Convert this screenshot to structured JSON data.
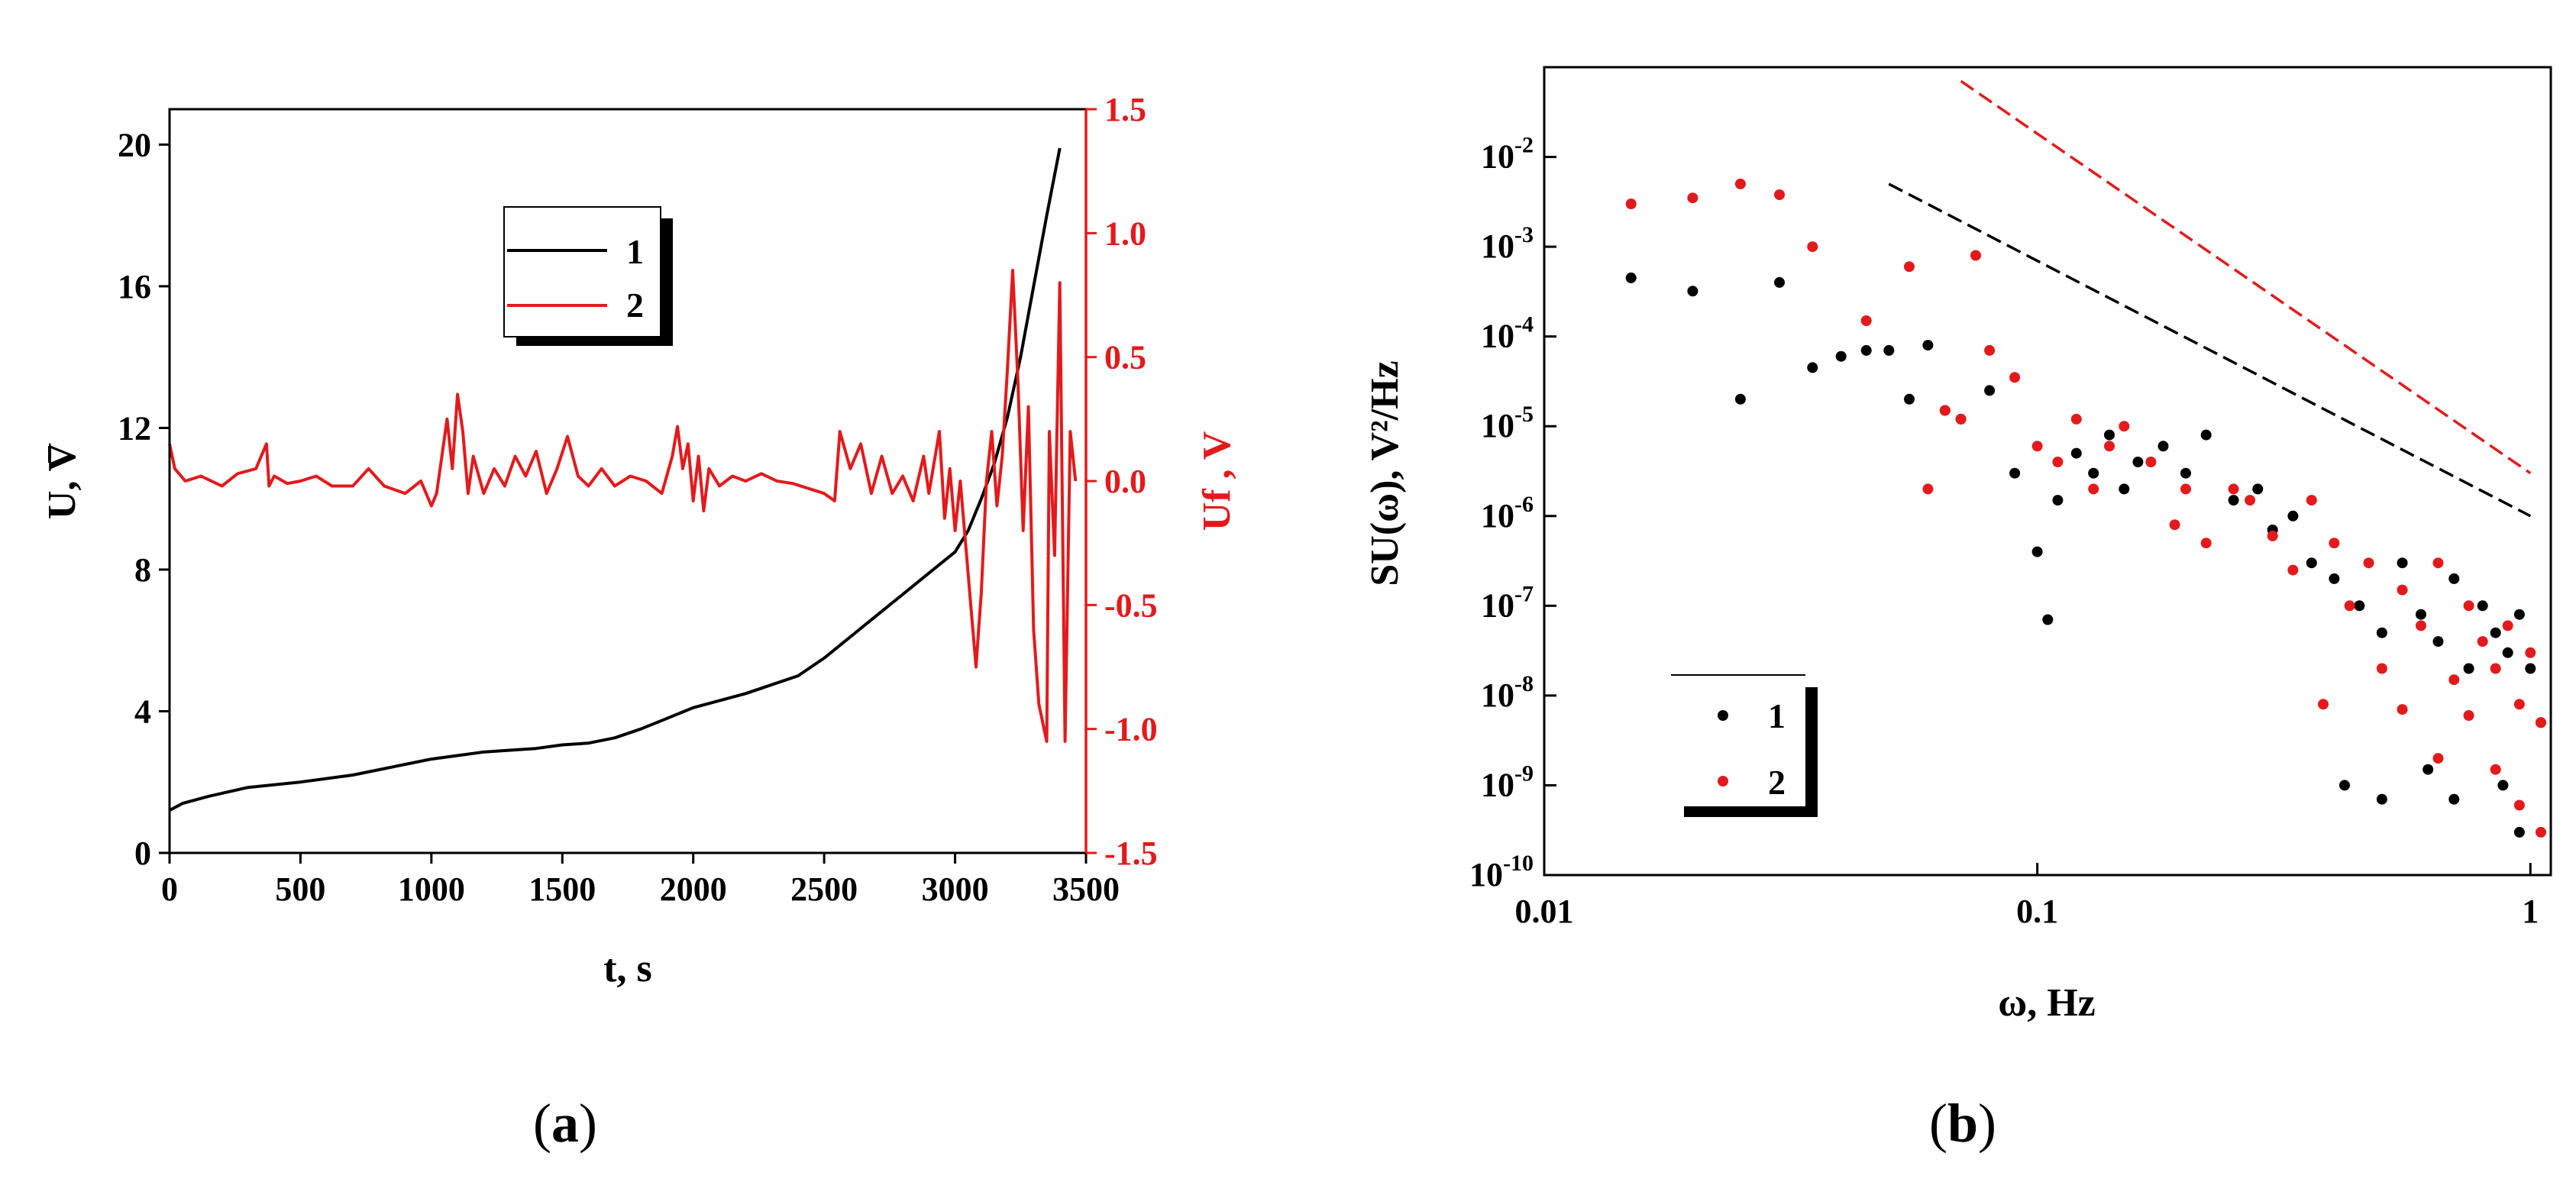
{
  "figure_labels": {
    "a_open": "(",
    "a_letter": "a",
    "a_close": ")",
    "b_open": "(",
    "b_letter": "b",
    "b_close": ")"
  },
  "chart_data": [
    {
      "id": "a",
      "type": "line",
      "xlabel": "t, s",
      "ylabel_left": "U, V",
      "ylabel_right": "Uf , V",
      "xlim": [
        0,
        3500
      ],
      "ylim_left": [
        0,
        21
      ],
      "ylim_right": [
        -1.5,
        1.5
      ],
      "x_ticks": [
        "0",
        "500",
        "1000",
        "1500",
        "2000",
        "2500",
        "3000",
        "3500"
      ],
      "y_left_ticks": [
        "0",
        "4",
        "8",
        "12",
        "16",
        "20"
      ],
      "y_right_ticks": [
        "-1.5",
        "-1.0",
        "-0.5",
        "0.0",
        "0.5",
        "1.0",
        "1.5"
      ],
      "legend": {
        "placement": "top-center",
        "entries": [
          "1",
          "2"
        ]
      },
      "series": [
        {
          "legend": "1",
          "color": "#000000",
          "axis": "left",
          "x": [
            0,
            50,
            150,
            300,
            500,
            700,
            900,
            1000,
            1100,
            1200,
            1300,
            1400,
            1500,
            1600,
            1700,
            1800,
            1900,
            2000,
            2100,
            2200,
            2300,
            2400,
            2500,
            2600,
            2700,
            2800,
            2900,
            3000,
            3050,
            3100,
            3150,
            3200,
            3250,
            3300,
            3350,
            3400
          ],
          "y": [
            1.2,
            1.4,
            1.6,
            1.85,
            2.0,
            2.2,
            2.5,
            2.65,
            2.75,
            2.85,
            2.9,
            2.95,
            3.05,
            3.1,
            3.25,
            3.5,
            3.8,
            4.1,
            4.3,
            4.5,
            4.75,
            5.0,
            5.5,
            6.1,
            6.7,
            7.3,
            7.9,
            8.5,
            9.1,
            10.0,
            11.0,
            12.3,
            14.0,
            16.0,
            18.0,
            19.9
          ]
        },
        {
          "legend": "2",
          "color": "#e31a1c",
          "axis": "right",
          "x": [
            0,
            20,
            60,
            120,
            200,
            260,
            330,
            370,
            380,
            400,
            450,
            500,
            560,
            620,
            700,
            760,
            820,
            900,
            960,
            1000,
            1020,
            1040,
            1060,
            1080,
            1100,
            1120,
            1140,
            1160,
            1200,
            1240,
            1280,
            1320,
            1360,
            1400,
            1440,
            1480,
            1520,
            1560,
            1600,
            1650,
            1700,
            1760,
            1820,
            1880,
            1920,
            1940,
            1960,
            1980,
            2000,
            2020,
            2040,
            2060,
            2100,
            2150,
            2200,
            2260,
            2320,
            2380,
            2440,
            2500,
            2540,
            2560,
            2600,
            2640,
            2680,
            2720,
            2760,
            2800,
            2840,
            2880,
            2900,
            2940,
            2960,
            2980,
            3000,
            3020,
            3040,
            3060,
            3080,
            3090,
            3100,
            3120,
            3140,
            3160,
            3180,
            3200,
            3220,
            3240,
            3260,
            3280,
            3300,
            3320,
            3340,
            3350,
            3360,
            3380,
            3400,
            3420,
            3440,
            3460
          ],
          "y": [
            0.15,
            0.05,
            0.0,
            0.02,
            -0.02,
            0.03,
            0.05,
            0.15,
            -0.02,
            0.02,
            -0.01,
            0.0,
            0.02,
            -0.02,
            -0.02,
            0.05,
            -0.02,
            -0.05,
            0.0,
            -0.1,
            -0.05,
            0.1,
            0.25,
            0.05,
            0.35,
            0.2,
            -0.05,
            0.1,
            -0.05,
            0.05,
            -0.02,
            0.1,
            0.02,
            0.12,
            -0.05,
            0.05,
            0.18,
            0.02,
            -0.02,
            0.05,
            -0.02,
            0.02,
            0.0,
            -0.05,
            0.1,
            0.22,
            0.05,
            0.15,
            -0.08,
            0.1,
            -0.12,
            0.05,
            -0.02,
            0.02,
            0.0,
            0.03,
            0.0,
            -0.01,
            -0.03,
            -0.05,
            -0.08,
            0.2,
            0.05,
            0.15,
            -0.05,
            0.1,
            -0.05,
            0.02,
            -0.08,
            0.1,
            -0.05,
            0.2,
            -0.15,
            0.05,
            -0.2,
            0.0,
            -0.25,
            -0.5,
            -0.75,
            -0.6,
            -0.45,
            0.0,
            0.2,
            -0.1,
            0.1,
            0.45,
            0.85,
            0.4,
            -0.2,
            0.3,
            -0.6,
            -0.9,
            -1.0,
            -1.05,
            0.2,
            -0.3,
            0.8,
            -1.05,
            0.2,
            0.0
          ]
        }
      ]
    },
    {
      "id": "b",
      "type": "scatter",
      "xlabel": "ω, Hz",
      "ylabel": "SU(ω), V²/Hz",
      "xscale": "log",
      "yscale": "log",
      "xlim": [
        0.01,
        1.1
      ],
      "ylim": [
        1e-10,
        0.1
      ],
      "x_ticks": [
        "0.01",
        "0.1",
        "1"
      ],
      "y_ticks": [
        "10-10",
        "10-9",
        "10-8",
        "10-7",
        "10-6",
        "10-5",
        "10-4",
        "10-3",
        "10-2"
      ],
      "legend": {
        "placement": "bottom-left",
        "entries": [
          "1",
          "2"
        ]
      },
      "series": [
        {
          "legend": "1",
          "color": "#000000",
          "x": [
            0.015,
            0.02,
            0.025,
            0.03,
            0.035,
            0.04,
            0.045,
            0.05,
            0.055,
            0.06,
            0.065,
            0.07,
            0.08,
            0.09,
            0.1,
            0.105,
            0.11,
            0.12,
            0.13,
            0.14,
            0.15,
            0.16,
            0.18,
            0.2,
            0.22,
            0.25,
            0.28,
            0.3,
            0.33,
            0.36,
            0.4,
            0.45,
            0.5,
            0.55,
            0.6,
            0.65,
            0.7,
            0.75,
            0.8,
            0.85,
            0.9,
            0.95,
            1.0,
            1.05,
            0.42,
            0.5,
            0.62,
            0.7,
            0.88,
            0.95
          ],
          "y": [
            0.00045,
            0.00032,
            2e-05,
            0.0004,
            4.5e-05,
            6e-05,
            7e-05,
            7e-05,
            2e-05,
            8e-05,
            1.5e-05,
            1.2e-05,
            2.5e-05,
            3e-06,
            4e-07,
            7e-08,
            1.5e-06,
            5e-06,
            3e-06,
            8e-06,
            2e-06,
            4e-06,
            6e-06,
            3e-06,
            8e-06,
            1.5e-06,
            2e-06,
            7e-07,
            1e-06,
            3e-07,
            2e-07,
            1e-07,
            5e-08,
            3e-07,
            8e-08,
            4e-08,
            2e-07,
            2e-08,
            1e-07,
            5e-08,
            3e-08,
            8e-08,
            2e-08,
            5e-09,
            1e-09,
            7e-10,
            1.5e-09,
            7e-10,
            1e-09,
            3e-10
          ]
        },
        {
          "legend": "2",
          "color": "#e31a1c",
          "x": [
            0.015,
            0.02,
            0.025,
            0.03,
            0.035,
            0.045,
            0.055,
            0.06,
            0.065,
            0.07,
            0.075,
            0.08,
            0.09,
            0.1,
            0.11,
            0.12,
            0.13,
            0.14,
            0.15,
            0.17,
            0.19,
            0.2,
            0.22,
            0.25,
            0.27,
            0.3,
            0.33,
            0.36,
            0.4,
            0.43,
            0.47,
            0.5,
            0.55,
            0.6,
            0.65,
            0.7,
            0.75,
            0.8,
            0.85,
            0.9,
            0.95,
            1.0,
            1.05,
            0.55,
            0.65,
            0.75,
            0.85,
            0.95,
            1.05,
            0.38
          ],
          "y": [
            0.003,
            0.0035,
            0.005,
            0.0038,
            0.001,
            0.00015,
            0.0006,
            2e-06,
            1.5e-05,
            1.2e-05,
            0.0008,
            7e-05,
            3.5e-05,
            6e-06,
            4e-06,
            1.2e-05,
            2e-06,
            6e-06,
            1e-05,
            4e-06,
            8e-07,
            2e-06,
            5e-07,
            2e-06,
            1.5e-06,
            6e-07,
            2.5e-07,
            1.5e-06,
            5e-07,
            1e-07,
            3e-07,
            2e-08,
            1.5e-07,
            6e-08,
            3e-07,
            1.5e-08,
            1e-07,
            4e-08,
            2e-08,
            6e-08,
            8e-09,
            3e-08,
            5e-09,
            7e-09,
            2e-09,
            6e-09,
            1.5e-09,
            6e-10,
            3e-10,
            8e-09
          ]
        }
      ],
      "reference_lines": [
        {
          "color": "#000000",
          "style": "dashed",
          "x": [
            0.05,
            1.0
          ],
          "y": [
            0.005,
            1e-06
          ]
        },
        {
          "color": "#e31a1c",
          "style": "dashed",
          "x": [
            0.07,
            1.0
          ],
          "y": [
            0.07,
            3e-06
          ]
        }
      ]
    }
  ]
}
